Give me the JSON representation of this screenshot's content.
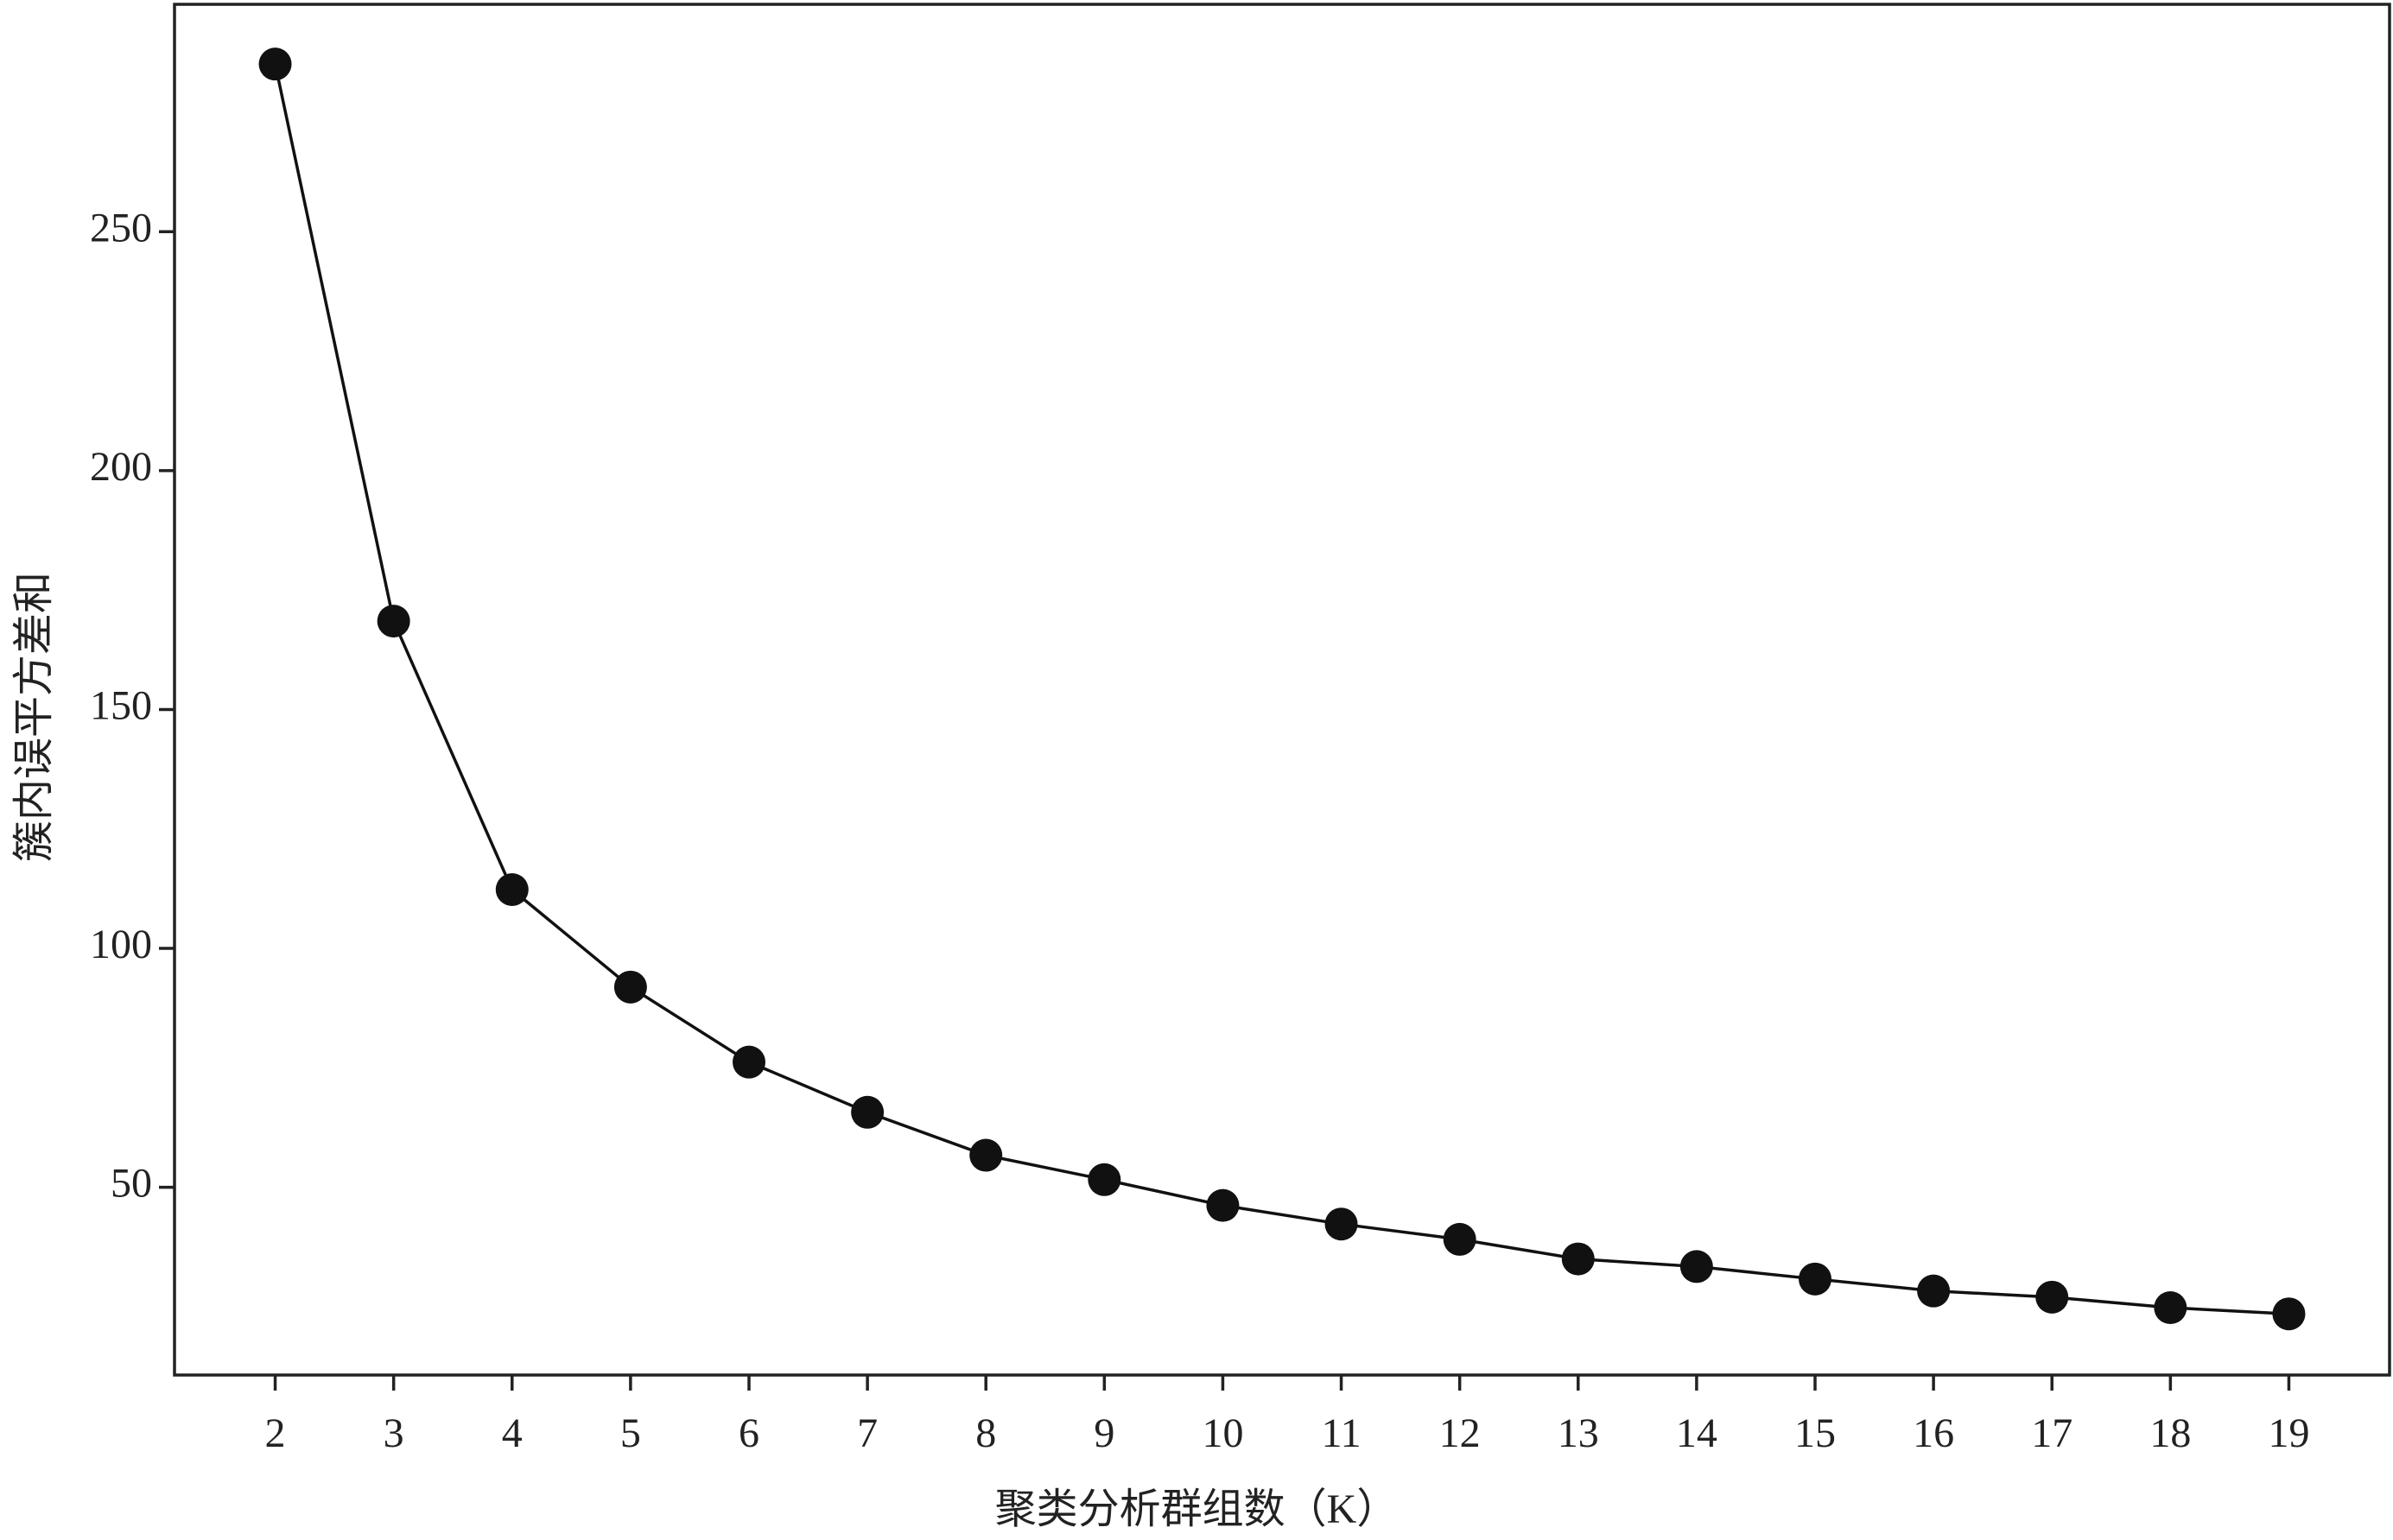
{
  "chart_data": {
    "type": "line",
    "x_label": "聚类分析群组数（K）",
    "y_label": "簇内误平方差和",
    "x": [
      2,
      3,
      4,
      5,
      6,
      7,
      8,
      9,
      10,
      11,
      12,
      13,
      14,
      15,
      16,
      17,
      18,
      19
    ],
    "values": [
      285.1,
      168.5,
      112.3,
      91.9,
      76.2,
      65.7,
      56.7,
      51.6,
      46.2,
      42.3,
      39.1,
      35.0,
      33.4,
      30.8,
      28.3,
      27.0,
      24.8,
      23.5
    ],
    "color": "#111111",
    "xlim": [
      1.15,
      19.85
    ],
    "ylim": [
      10.7,
      297.6
    ],
    "xticks": [
      2,
      3,
      4,
      5,
      6,
      7,
      8,
      9,
      10,
      11,
      12,
      13,
      14,
      15,
      16,
      17,
      18,
      19
    ],
    "yticks": [
      50,
      100,
      150,
      200,
      250
    ],
    "grid": false
  }
}
